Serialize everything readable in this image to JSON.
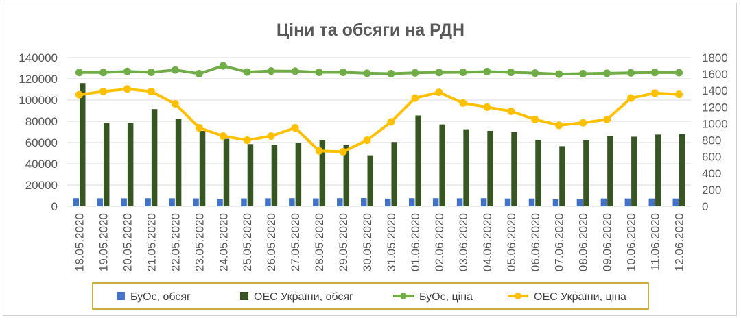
{
  "chart_data": {
    "type": "bar+line",
    "title": "Ціни та обсяги на РДН",
    "categories": [
      "18.05.2020",
      "19.05.2020",
      "20.05.2020",
      "21.05.2020",
      "22.05.2020",
      "23.05.2020",
      "24.05.2020",
      "25.05.2020",
      "26.05.2020",
      "27.05.2020",
      "28.05.2020",
      "29.05.2020",
      "30.05.2020",
      "31.05.2020",
      "01.06.2020",
      "02.06.2020",
      "03.06.2020",
      "04.06.2020",
      "05.06.2020",
      "06.06.2020",
      "07.06.2020",
      "08.06.2020",
      "09.06.2020",
      "10.06.2020",
      "11.06.2020",
      "12.06.2020"
    ],
    "y_left": {
      "min": 0,
      "max": 140000,
      "step": 20000,
      "ticks": [
        "0",
        "20000",
        "40000",
        "60000",
        "80000",
        "100000",
        "120000",
        "140000"
      ]
    },
    "y_right": {
      "min": 0,
      "max": 1800,
      "step": 200,
      "ticks": [
        "0",
        "200",
        "400",
        "600",
        "800",
        "1000",
        "1200",
        "1400",
        "1600",
        "1800"
      ]
    },
    "grid": true,
    "legend_position": "bottom",
    "series": [
      {
        "name": "БуОс, обсяг",
        "type": "bar",
        "axis": "left",
        "color": "#4472C4",
        "values": [
          7600,
          7500,
          7500,
          7600,
          7500,
          7400,
          6900,
          7400,
          7500,
          7600,
          7400,
          7600,
          7700,
          7200,
          7600,
          7600,
          7500,
          7600,
          7300,
          7300,
          6500,
          6800,
          7300,
          7300,
          7300,
          7300
        ]
      },
      {
        "name": "ОЕС України, обсяг",
        "type": "bar",
        "axis": "left",
        "color": "#375623",
        "values": [
          116000,
          78500,
          78500,
          91500,
          82500,
          71000,
          63500,
          58500,
          58000,
          60000,
          62500,
          57500,
          48000,
          60500,
          85500,
          77000,
          72500,
          71000,
          70000,
          62500,
          56500,
          62500,
          66000,
          65500,
          67500,
          68000
        ]
      },
      {
        "name": "БуОс, ціна",
        "type": "line",
        "axis": "right",
        "color": "#70AD47",
        "values": [
          1620,
          1620,
          1632,
          1622,
          1650,
          1605,
          1700,
          1625,
          1637,
          1635,
          1622,
          1622,
          1610,
          1605,
          1615,
          1620,
          1622,
          1630,
          1622,
          1612,
          1600,
          1605,
          1610,
          1615,
          1620,
          1618
        ]
      },
      {
        "name": "ОЕС України, ціна",
        "type": "line",
        "axis": "right",
        "color": "#FFC000",
        "values": [
          1350,
          1390,
          1420,
          1390,
          1240,
          950,
          850,
          800,
          850,
          950,
          670,
          660,
          800,
          1020,
          1310,
          1380,
          1250,
          1200,
          1150,
          1050,
          980,
          1010,
          1050,
          1310,
          1370,
          1355
        ]
      }
    ]
  }
}
